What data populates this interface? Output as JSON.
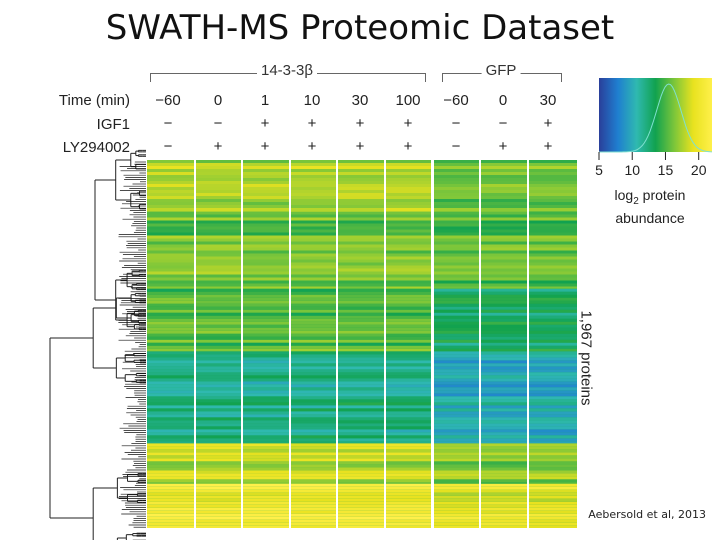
{
  "slide": {
    "title": "SWATH-MS Proteomic Dataset",
    "citation": "Aebersold et al, 2013"
  },
  "chart_data": {
    "type": "heatmap",
    "row_labels": [
      "Time (min)",
      "IGF1",
      "LY294002"
    ],
    "groups": [
      {
        "name": "14-3-3β",
        "columns": [
          0,
          1,
          2,
          3,
          4,
          5
        ]
      },
      {
        "name": "GFP",
        "columns": [
          6,
          7,
          8
        ]
      }
    ],
    "columns": [
      {
        "time": "−60",
        "igf1": "−",
        "ly": "−"
      },
      {
        "time": "0",
        "igf1": "−",
        "ly": "+"
      },
      {
        "time": "1",
        "igf1": "+",
        "ly": "+"
      },
      {
        "time": "10",
        "igf1": "+",
        "ly": "+"
      },
      {
        "time": "30",
        "igf1": "+",
        "ly": "+"
      },
      {
        "time": "100",
        "igf1": "+",
        "ly": "+"
      },
      {
        "time": "−60",
        "igf1": "−",
        "ly": "−"
      },
      {
        "time": "0",
        "igf1": "−",
        "ly": "+"
      },
      {
        "time": "30",
        "igf1": "+",
        "ly": "+"
      }
    ],
    "row_count_label": "1,967 proteins",
    "colorbar": {
      "ticks": [
        5,
        10,
        15,
        20
      ],
      "range": [
        5,
        22
      ],
      "title_line1": "log",
      "title_sub": "2",
      "title_line1_rest": " protein",
      "title_line2": "abundance",
      "colors": [
        "#2a3f9a",
        "#1f7fd0",
        "#2fb9b0",
        "#11a24f",
        "#7cc63a",
        "#e8e21f",
        "#fff04a"
      ]
    },
    "blocks": [
      {
        "frac_start": 0.0,
        "frac_end": 0.14,
        "group_values": [
          17.5,
          15.8
        ]
      },
      {
        "frac_start": 0.14,
        "frac_end": 0.35,
        "group_values": [
          16.0,
          15.5
        ]
      },
      {
        "frac_start": 0.35,
        "frac_end": 0.52,
        "group_values": [
          15.2,
          13.0
        ]
      },
      {
        "frac_start": 0.52,
        "frac_end": 0.77,
        "group_values": [
          12.0,
          10.0
        ]
      },
      {
        "frac_start": 0.77,
        "frac_end": 0.88,
        "group_values": [
          18.0,
          16.5
        ]
      },
      {
        "frac_start": 0.88,
        "frac_end": 1.0,
        "group_values": [
          20.5,
          19.5
        ]
      }
    ]
  }
}
